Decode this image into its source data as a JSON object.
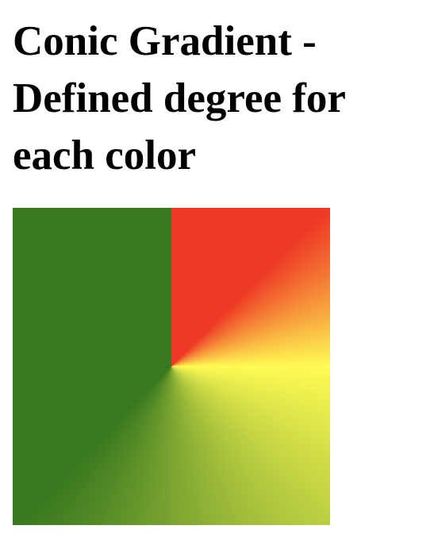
{
  "page": {
    "title": "Conic Gradient - Defined degree for each color"
  },
  "gradient": {
    "colors": {
      "red": "#ee3a25",
      "yellow": "#fffb53",
      "green": "#38781f"
    }
  }
}
